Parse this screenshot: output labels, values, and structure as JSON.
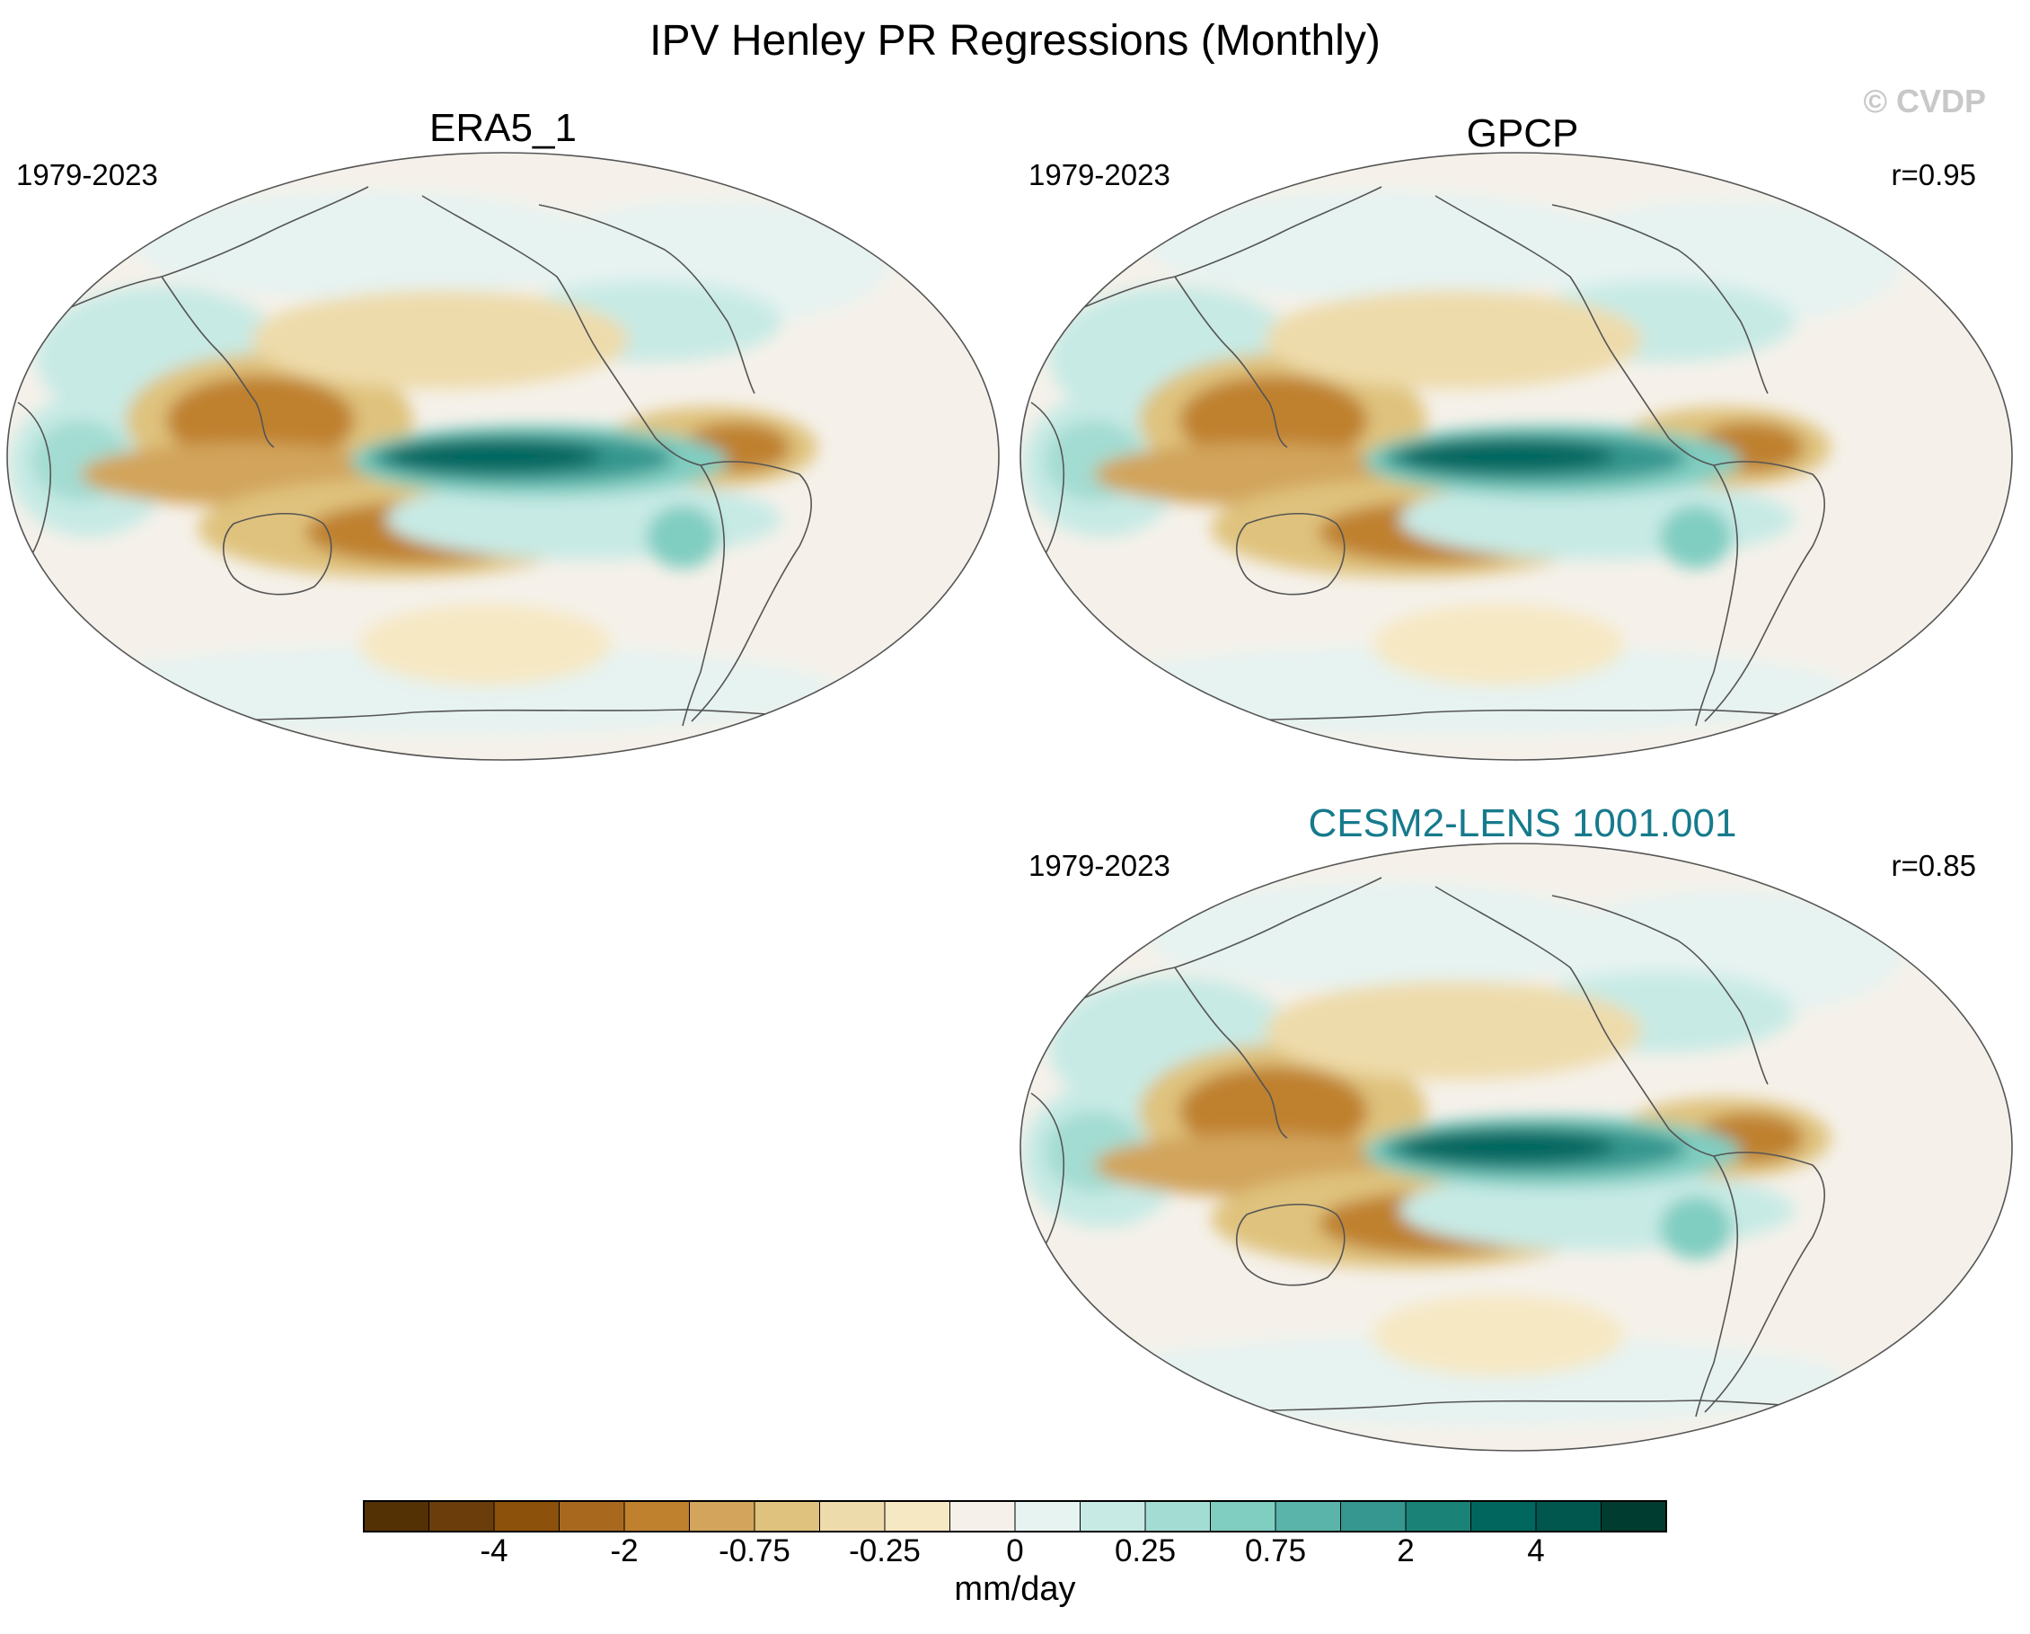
{
  "title": "IPV Henley PR Regressions (Monthly)",
  "copyright": "© CVDP",
  "panels": [
    {
      "name": "ERA5_1",
      "period": "1979-2023",
      "corr": ""
    },
    {
      "name": "GPCP",
      "period": "1979-2023",
      "corr": "r=0.95"
    },
    {
      "name": "CESM2-LENS 1001.001",
      "period": "1979-2023",
      "corr": "r=0.85"
    }
  ],
  "colorbar": {
    "units": "mm/day",
    "labels": [
      "-4",
      "-2",
      "-0.75",
      "-0.25",
      "0",
      "0.25",
      "0.75",
      "2",
      "4"
    ],
    "colors": [
      "#543005",
      "#6b3d0b",
      "#8c510a",
      "#a8691f",
      "#bf812d",
      "#d2a45c",
      "#dfc27d",
      "#eedbab",
      "#f6e8c3",
      "#f5f1ea",
      "#e6f3f1",
      "#c7eae5",
      "#a3dcd2",
      "#80cdc1",
      "#5ab4a9",
      "#35978f",
      "#1b8278",
      "#01665e",
      "#01574d",
      "#003c30"
    ]
  }
}
